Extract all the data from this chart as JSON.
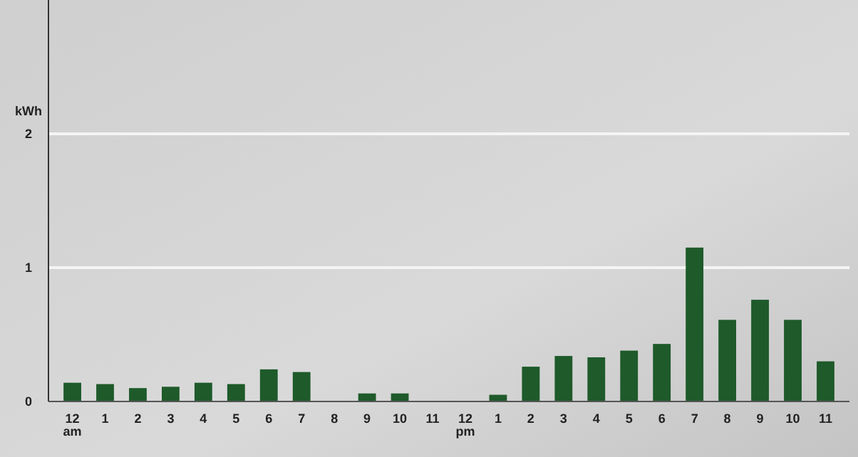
{
  "chart_data": {
    "type": "bar",
    "ylabel": "kWh",
    "categories": [
      "12\nam",
      "1",
      "2",
      "3",
      "4",
      "5",
      "6",
      "7",
      "8",
      "9",
      "10",
      "11",
      "12\npm",
      "1",
      "2",
      "3",
      "4",
      "5",
      "6",
      "7",
      "8",
      "9",
      "10",
      "11"
    ],
    "values": [
      0.14,
      0.13,
      0.1,
      0.11,
      0.14,
      0.13,
      0.24,
      0.22,
      0,
      0.06,
      0.06,
      0,
      0,
      0.05,
      0.26,
      0.34,
      0.33,
      0.38,
      0.43,
      1.15,
      0.61,
      0.76,
      0.61,
      0.3
    ],
    "color": "#1e5a2a",
    "ylim": [
      0,
      3
    ],
    "yticks": [
      0,
      1,
      2
    ],
    "grid": "y"
  }
}
